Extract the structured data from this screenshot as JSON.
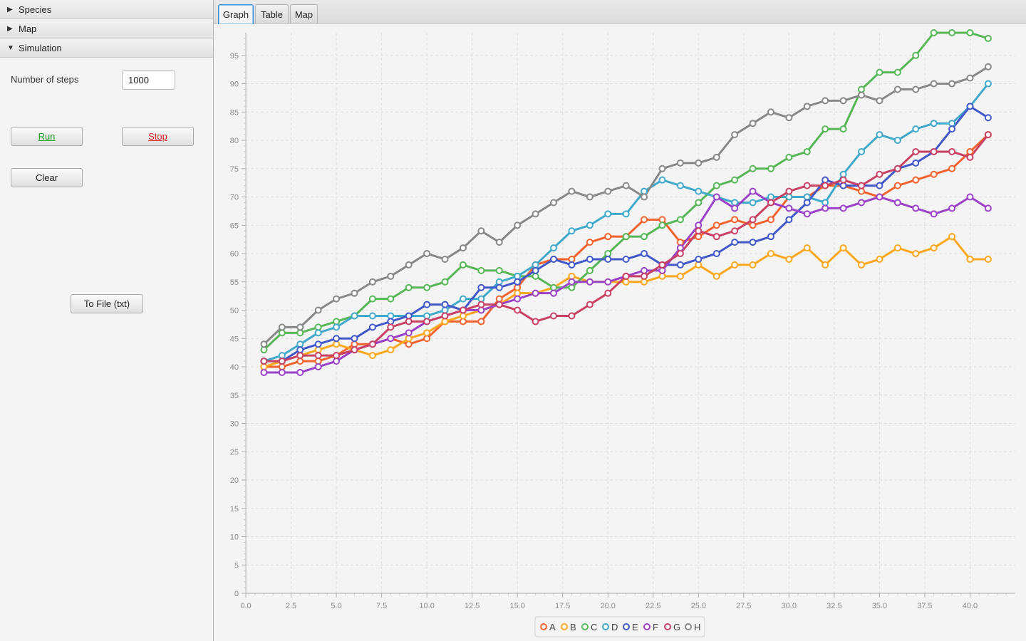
{
  "sidebar": {
    "sections": [
      {
        "label": "Species",
        "expanded": false
      },
      {
        "label": "Map",
        "expanded": false
      },
      {
        "label": "Simulation",
        "expanded": true
      }
    ],
    "simulation": {
      "steps_label": "Number of steps",
      "steps_value": "1000",
      "run_label": "Run",
      "stop_label": "Stop",
      "clear_label": "Clear",
      "file_label": "To File (txt)"
    }
  },
  "tabs": [
    {
      "label": "Graph",
      "active": true
    },
    {
      "label": "Table",
      "active": false
    },
    {
      "label": "Map",
      "active": false
    }
  ],
  "chart_data": {
    "type": "line",
    "title": "",
    "xlabel": "",
    "ylabel": "",
    "xlim": [
      0,
      42.5
    ],
    "ylim": [
      0,
      99
    ],
    "xticks": [
      "0.0",
      "2.5",
      "5.0",
      "7.5",
      "10.0",
      "12.5",
      "15.0",
      "17.5",
      "20.0",
      "22.5",
      "25.0",
      "27.5",
      "30.0",
      "32.5",
      "35.0",
      "37.5",
      "40.0"
    ],
    "yticks": [
      "0",
      "5",
      "10",
      "15",
      "20",
      "25",
      "30",
      "35",
      "40",
      "45",
      "50",
      "55",
      "60",
      "65",
      "70",
      "75",
      "80",
      "85",
      "90",
      "95"
    ],
    "grid": true,
    "legend": "bottom",
    "x": [
      1,
      2,
      3,
      4,
      5,
      6,
      7,
      8,
      9,
      10,
      11,
      12,
      13,
      14,
      15,
      16,
      17,
      18,
      19,
      20,
      21,
      22,
      23,
      24,
      25,
      26,
      27,
      28,
      29,
      30,
      31,
      32,
      33,
      34,
      35,
      36,
      37,
      38,
      39,
      40,
      41
    ],
    "series": [
      {
        "name": "A",
        "color": "#f3622d",
        "values": [
          40,
          40,
          41,
          41,
          42,
          44,
          44,
          45,
          44,
          45,
          48,
          48,
          48,
          52,
          54,
          58,
          59,
          59,
          62,
          63,
          63,
          66,
          66,
          62,
          63,
          65,
          66,
          65,
          66,
          70,
          70,
          72,
          72,
          71,
          70,
          72,
          73,
          74,
          75,
          78,
          81
        ]
      },
      {
        "name": "B",
        "color": "#fba71b",
        "values": [
          40,
          41,
          42,
          43,
          44,
          43,
          42,
          43,
          45,
          46,
          48,
          49,
          50,
          51,
          53,
          53,
          54,
          56,
          55,
          55,
          55,
          55,
          56,
          56,
          58,
          56,
          58,
          58,
          60,
          59,
          61,
          58,
          61,
          58,
          59,
          61,
          60,
          61,
          63,
          59,
          59
        ]
      },
      {
        "name": "C",
        "color": "#57b757",
        "values": [
          43,
          46,
          46,
          47,
          48,
          49,
          52,
          52,
          54,
          54,
          55,
          58,
          57,
          57,
          56,
          56,
          54,
          54,
          57,
          60,
          63,
          63,
          65,
          66,
          69,
          72,
          73,
          75,
          75,
          77,
          78,
          82,
          82,
          89,
          92,
          92,
          95,
          99,
          99,
          99,
          98
        ]
      },
      {
        "name": "D",
        "color": "#41a9c9",
        "values": [
          41,
          42,
          44,
          46,
          47,
          49,
          49,
          49,
          49,
          49,
          50,
          52,
          52,
          55,
          56,
          58,
          61,
          64,
          65,
          67,
          67,
          71,
          73,
          72,
          71,
          70,
          69,
          69,
          70,
          70,
          70,
          69,
          74,
          78,
          81,
          80,
          82,
          83,
          83,
          86,
          90
        ]
      },
      {
        "name": "E",
        "color": "#4258c9",
        "values": [
          41,
          41,
          43,
          44,
          45,
          45,
          47,
          48,
          49,
          51,
          51,
          50,
          54,
          54,
          55,
          57,
          59,
          58,
          59,
          59,
          59,
          60,
          58,
          58,
          59,
          60,
          62,
          62,
          63,
          66,
          69,
          73,
          72,
          72,
          72,
          75,
          76,
          78,
          82,
          86,
          84
        ]
      },
      {
        "name": "F",
        "color": "#9a42c8",
        "values": [
          39,
          39,
          39,
          40,
          41,
          43,
          44,
          45,
          46,
          48,
          49,
          50,
          50,
          51,
          52,
          53,
          53,
          55,
          55,
          55,
          56,
          57,
          57,
          61,
          65,
          70,
          68,
          71,
          69,
          68,
          67,
          68,
          68,
          69,
          70,
          69,
          68,
          67,
          68,
          70,
          68
        ]
      },
      {
        "name": "G",
        "color": "#c84164",
        "values": [
          41,
          41,
          42,
          42,
          42,
          43,
          44,
          47,
          48,
          48,
          49,
          50,
          51,
          51,
          50,
          48,
          49,
          49,
          51,
          53,
          56,
          56,
          58,
          60,
          64,
          63,
          64,
          66,
          69,
          71,
          72,
          72,
          73,
          72,
          74,
          75,
          78,
          78,
          78,
          77,
          81
        ]
      },
      {
        "name": "H",
        "color": "#888888",
        "values": [
          44,
          47,
          47,
          50,
          52,
          53,
          55,
          56,
          58,
          60,
          59,
          61,
          64,
          62,
          65,
          67,
          69,
          71,
          70,
          71,
          72,
          70,
          75,
          76,
          76,
          77,
          81,
          83,
          85,
          84,
          86,
          87,
          87,
          88,
          87,
          89,
          89,
          90,
          90,
          91,
          93
        ]
      }
    ]
  }
}
